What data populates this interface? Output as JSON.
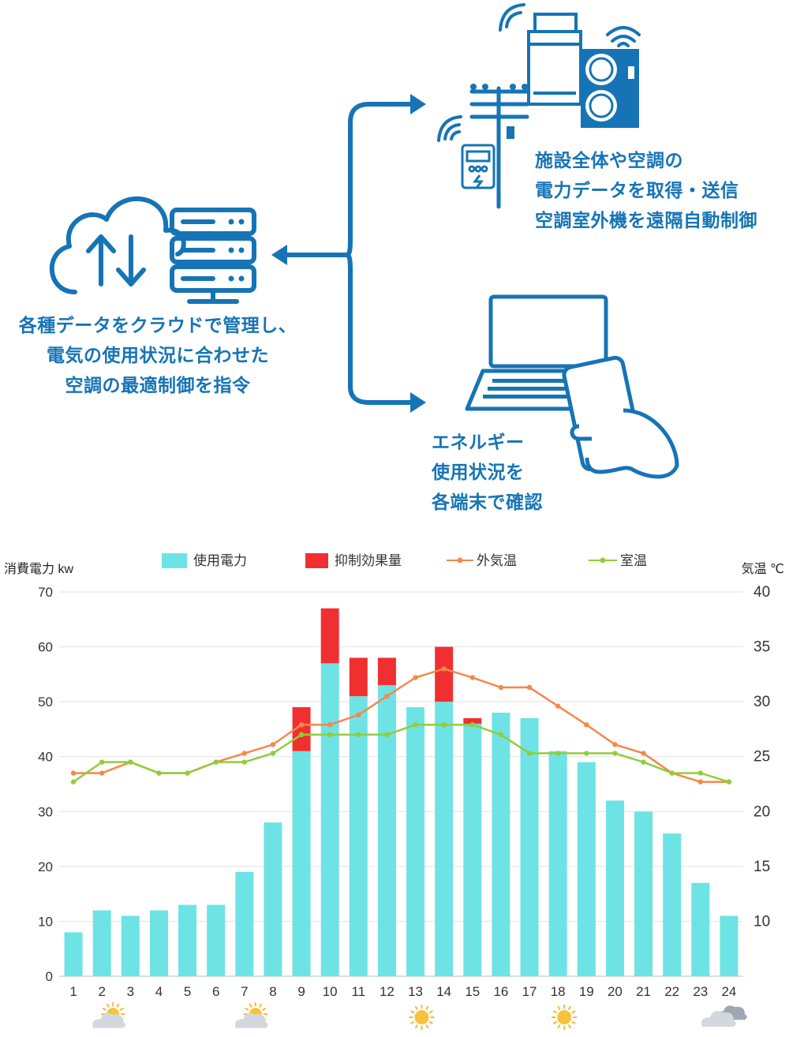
{
  "diagram": {
    "cloud_text": [
      "各種データをクラウドで管理し、",
      "電気の使用状況に合わせた",
      "空調の最適制御を指令"
    ],
    "facility_text": [
      "施設全体や空調の",
      "電力データを取得・送信",
      "空調室外機を遠隔自動制御"
    ],
    "energy_text": [
      "エネルギー",
      "使用状況を",
      "各端末で確認"
    ],
    "accent_color": "#1674b6"
  },
  "chart_data": {
    "type": "bar",
    "legend": [
      "使用電力",
      "抑制効果量",
      "外気温",
      "室温"
    ],
    "legend_position": "top",
    "y_left_label": "消費電力 kw",
    "y_right_label": "気温 ℃",
    "categories": [
      "1",
      "2",
      "3",
      "4",
      "5",
      "6",
      "7",
      "8",
      "9",
      "10",
      "11",
      "12",
      "13",
      "14",
      "15",
      "16",
      "17",
      "18",
      "19",
      "20",
      "21",
      "22",
      "23",
      "24"
    ],
    "ylim_left": [
      0,
      70
    ],
    "yticks_left": [
      "0",
      "10",
      "20",
      "30",
      "40",
      "50",
      "60",
      "70"
    ],
    "ylim_right": [
      5,
      40
    ],
    "yticks_right": [
      "10",
      "15",
      "20",
      "25",
      "30",
      "35",
      "40"
    ],
    "grid": true,
    "series": [
      {
        "name": "使用電力",
        "kind": "bar",
        "color": "#6ee3e5",
        "values": [
          8,
          12,
          11,
          12,
          13,
          13,
          19,
          28,
          41,
          57,
          51,
          53,
          49,
          50,
          46,
          48,
          47,
          41,
          39,
          32,
          30,
          26,
          17,
          11
        ]
      },
      {
        "name": "抑制効果量",
        "kind": "bar-stacked",
        "color": "#f03030",
        "values": [
          0,
          0,
          0,
          0,
          0,
          0,
          0,
          0,
          8,
          10,
          7,
          5,
          0,
          10,
          1,
          0,
          0,
          0,
          0,
          0,
          0,
          0,
          0,
          0
        ]
      },
      {
        "name": "外気温",
        "kind": "line",
        "axis": "right",
        "color": "#f5884a",
        "values": [
          23.5,
          23.5,
          24.5,
          23.5,
          23.5,
          24.5,
          25.3,
          26.1,
          27.9,
          27.9,
          28.8,
          30.5,
          32.2,
          33.0,
          32.2,
          31.3,
          31.3,
          29.6,
          27.9,
          26.1,
          25.3,
          23.5,
          22.7,
          22.7
        ]
      },
      {
        "name": "室温",
        "kind": "line",
        "axis": "right",
        "color": "#93cc3a",
        "values": [
          22.7,
          24.5,
          24.5,
          23.5,
          23.5,
          24.5,
          24.5,
          25.3,
          27.0,
          27.0,
          27.0,
          27.0,
          27.9,
          27.9,
          27.9,
          27.0,
          25.3,
          25.3,
          25.3,
          25.3,
          24.5,
          23.5,
          23.5,
          22.7
        ]
      }
    ],
    "weather": [
      {
        "hour": "2",
        "icon": "partly-cloudy-icon"
      },
      {
        "hour": "7",
        "icon": "partly-cloudy-icon"
      },
      {
        "hour": "13",
        "icon": "sun-icon"
      },
      {
        "hour": "18",
        "icon": "sun-icon"
      },
      {
        "hour": "24",
        "icon": "cloud-icon"
      }
    ]
  }
}
